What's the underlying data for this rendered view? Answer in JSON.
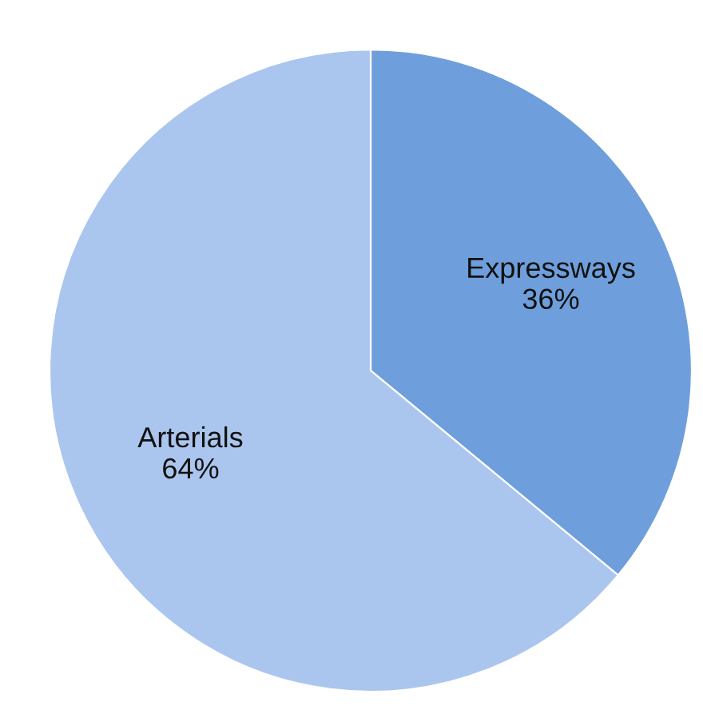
{
  "chart_data": {
    "type": "pie",
    "categories": [
      "Expressways",
      "Arterials"
    ],
    "values": [
      36,
      64
    ],
    "colors": [
      "#6e9fdc",
      "#abc6ee"
    ],
    "value_labels": [
      "36%",
      "64%"
    ],
    "legend": false
  }
}
